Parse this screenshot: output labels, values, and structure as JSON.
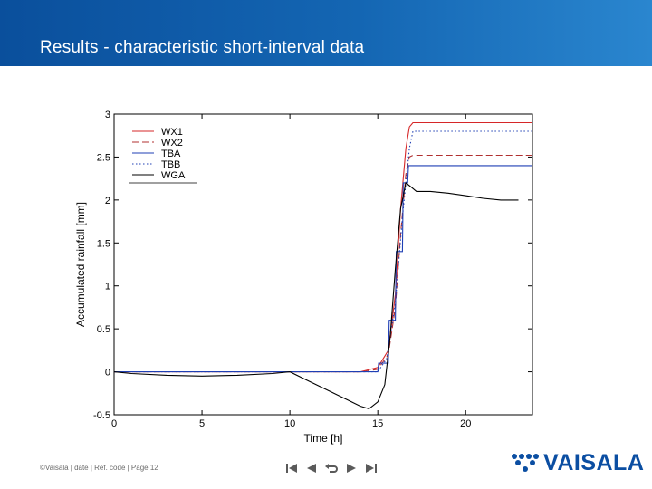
{
  "slide": {
    "title": "Results - characteristic short-interval data",
    "footer": "©Vaisala | date | Ref. code | Page 12",
    "logo_text": "VAISALA",
    "accent_color": "#0b4ea2"
  },
  "navigation": {
    "icons": [
      "first-page-icon",
      "previous-page-icon",
      "return-icon",
      "next-page-icon",
      "last-page-icon"
    ]
  },
  "chart_data": {
    "type": "line",
    "title": "",
    "xlabel": "Time [h]",
    "ylabel": "Accumulated rainfall [mm]",
    "xlim": [
      0,
      23.8
    ],
    "ylim": [
      -0.5,
      3
    ],
    "xticks": [
      0,
      5,
      10,
      15,
      20
    ],
    "yticks": [
      -0.5,
      0,
      0.5,
      1,
      1.5,
      2,
      2.5,
      3
    ],
    "xtick_labels": [
      "0",
      "5",
      "10",
      "15",
      "20"
    ],
    "ytick_labels": [
      "-0.5",
      "0",
      "0.5",
      "1",
      "1.5",
      "2",
      "2.5",
      "3"
    ],
    "grid": false,
    "legend_position": "top-left",
    "series": [
      {
        "name": "WX1",
        "color": "#d62728",
        "dash": "solid",
        "x": [
          0,
          14.0,
          15.0,
          15.6,
          16.0,
          16.3,
          16.6,
          16.8,
          17.0,
          23.8
        ],
        "y": [
          0,
          0,
          0.05,
          0.25,
          0.9,
          1.9,
          2.6,
          2.85,
          2.9,
          2.9
        ]
      },
      {
        "name": "WX2",
        "color": "#b03030",
        "dash": "dashed",
        "x": [
          0,
          14.2,
          15.0,
          15.6,
          16.0,
          16.3,
          16.6,
          16.8,
          17.0,
          23.8
        ],
        "y": [
          0,
          0,
          0.03,
          0.2,
          0.75,
          1.6,
          2.3,
          2.5,
          2.52,
          2.52
        ]
      },
      {
        "name": "TBA",
        "color": "#1f3fb4",
        "dash": "solid",
        "x": [
          0,
          15.0,
          15.05,
          15.6,
          15.65,
          16.0,
          16.05,
          16.4,
          16.45,
          16.7,
          16.75,
          23.8
        ],
        "y": [
          0,
          0,
          0.1,
          0.1,
          0.6,
          0.6,
          1.4,
          1.4,
          2.2,
          2.2,
          2.4,
          2.4
        ]
      },
      {
        "name": "TBB",
        "color": "#1f3fb4",
        "dash": "dotted",
        "x": [
          0,
          15.0,
          15.5,
          16.0,
          16.4,
          16.8,
          17.0,
          23.8
        ],
        "y": [
          0,
          0,
          0.15,
          0.8,
          1.8,
          2.6,
          2.8,
          2.8
        ]
      },
      {
        "name": "WGA",
        "color": "#000000",
        "dash": "solid",
        "x": [
          0,
          1,
          3,
          5,
          7,
          9,
          10,
          11,
          12,
          13,
          14,
          14.5,
          15.0,
          15.4,
          15.7,
          16.0,
          16.3,
          16.6,
          16.9,
          17.2,
          18,
          19,
          20,
          21,
          22,
          23
        ],
        "y": [
          0,
          -0.02,
          -0.04,
          -0.05,
          -0.04,
          -0.02,
          0,
          -0.1,
          -0.2,
          -0.3,
          -0.4,
          -0.43,
          -0.35,
          -0.15,
          0.4,
          1.2,
          1.9,
          2.2,
          2.15,
          2.1,
          2.1,
          2.08,
          2.05,
          2.02,
          2.0,
          2.0
        ]
      }
    ]
  }
}
